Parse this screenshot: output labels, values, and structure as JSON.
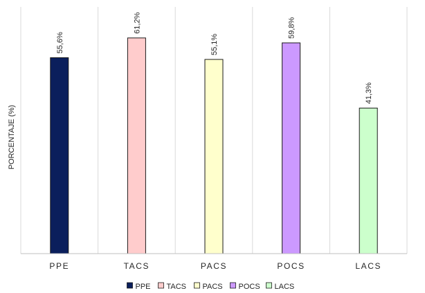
{
  "chart_data": {
    "type": "bar",
    "categories": [
      "PPE",
      "TACS",
      "PACS",
      "POCS",
      "LACS"
    ],
    "values": [
      55.6,
      61.2,
      55.1,
      59.8,
      41.3
    ],
    "data_labels": [
      "55,6%",
      "61,2%",
      "55,1%",
      "59,8%",
      "41,3%"
    ],
    "colors": [
      "#0b1f5c",
      "#ffcccc",
      "#ffffcc",
      "#cc99ff",
      "#ccffcc"
    ],
    "title": "",
    "xlabel": "",
    "ylabel": "PORCENTAJE (%)",
    "ylim": [
      0,
      70
    ],
    "grid": "vertical-separators",
    "legend": {
      "position": "bottom",
      "entries": [
        "PPE",
        "TACS",
        "PACS",
        "POCS",
        "LACS"
      ]
    }
  }
}
